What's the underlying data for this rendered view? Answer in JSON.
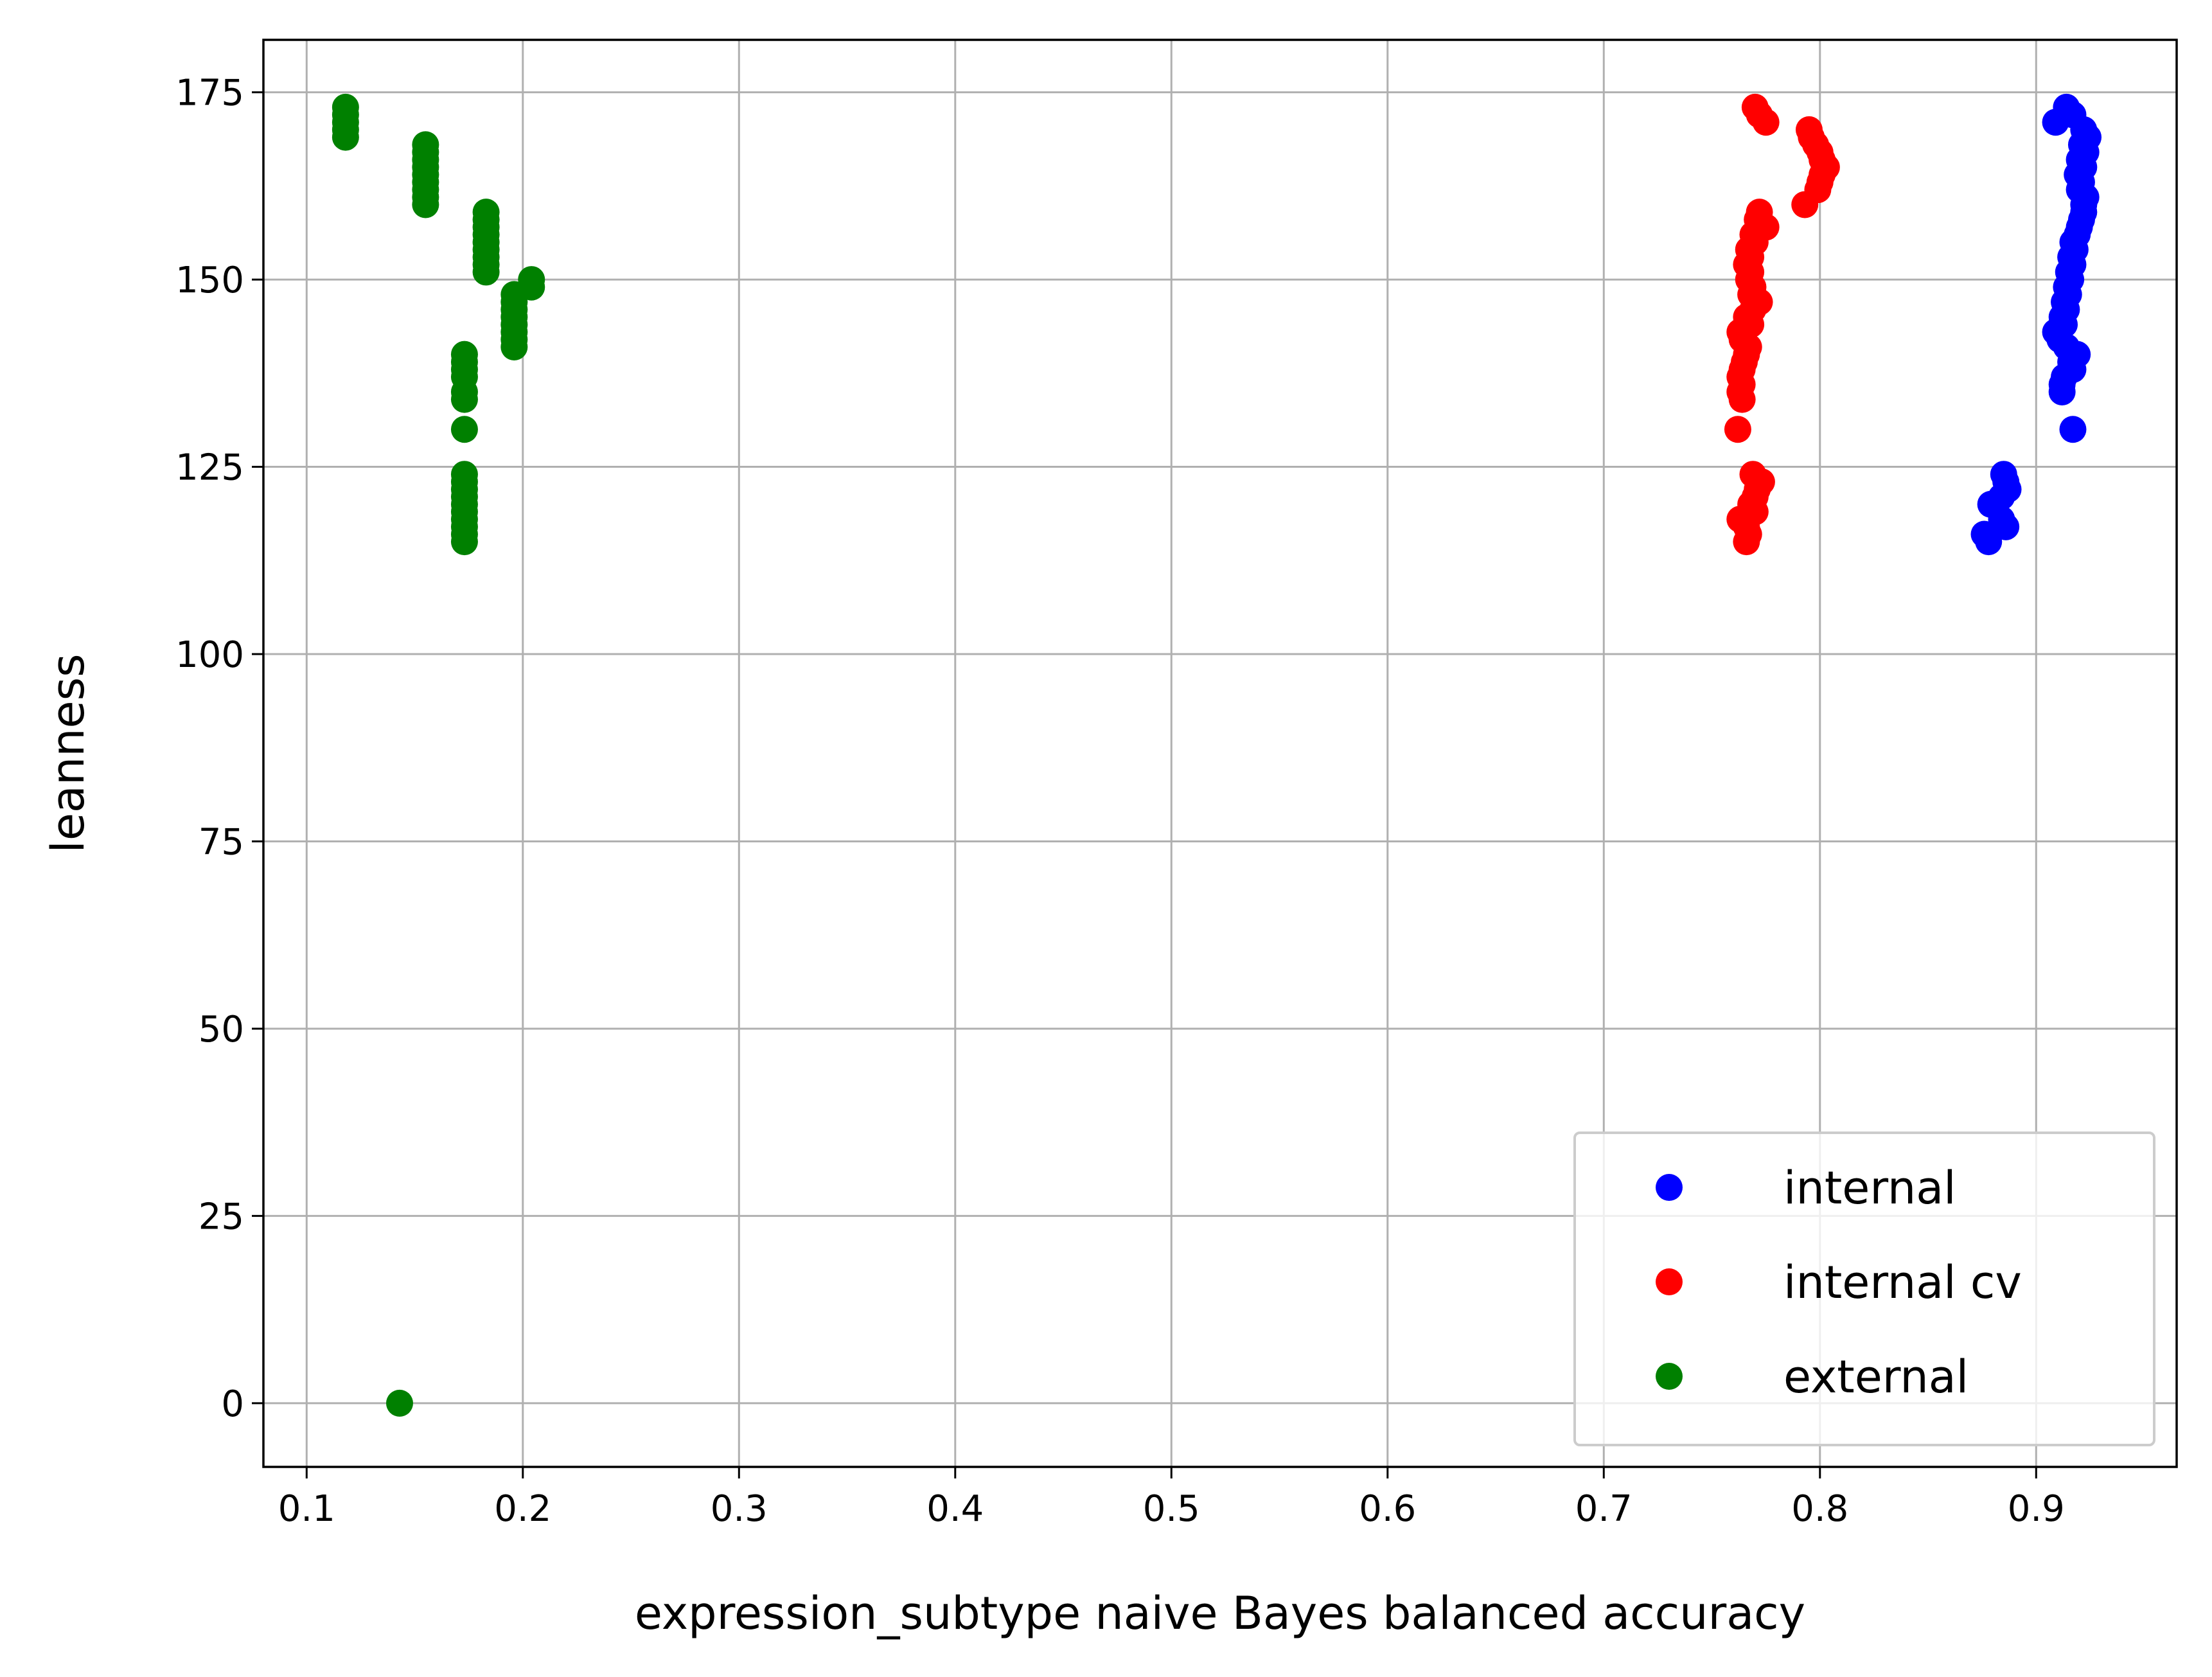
{
  "chart_data": {
    "type": "scatter",
    "title": "",
    "xlabel": "expression_subtype naive Bayes balanced accuracy",
    "ylabel": "leanness",
    "xlim": [
      0.08,
      0.965
    ],
    "ylim": [
      -8.5,
      182
    ],
    "xticks": [
      0.1,
      0.2,
      0.3,
      0.4,
      0.5,
      0.6,
      0.7,
      0.8,
      0.9
    ],
    "xtick_labels": [
      "0.1",
      "0.2",
      "0.3",
      "0.4",
      "0.5",
      "0.6",
      "0.7",
      "0.8",
      "0.9"
    ],
    "yticks": [
      0,
      25,
      50,
      75,
      100,
      125,
      150,
      175
    ],
    "ytick_labels": [
      "0",
      "25",
      "50",
      "75",
      "100",
      "125",
      "150",
      "175"
    ],
    "grid": true,
    "legend_position": "lower-right",
    "series": [
      {
        "name": "internal",
        "color": "#0000ff",
        "points": [
          [
            0.914,
            173
          ],
          [
            0.917,
            172
          ],
          [
            0.909,
            171
          ],
          [
            0.922,
            170
          ],
          [
            0.924,
            169
          ],
          [
            0.921,
            168
          ],
          [
            0.923,
            167
          ],
          [
            0.92,
            166
          ],
          [
            0.922,
            165
          ],
          [
            0.919,
            164
          ],
          [
            0.921,
            163
          ],
          [
            0.92,
            162
          ],
          [
            0.923,
            161
          ],
          [
            0.922,
            160
          ],
          [
            0.922,
            159
          ],
          [
            0.921,
            158
          ],
          [
            0.92,
            157
          ],
          [
            0.919,
            156
          ],
          [
            0.917,
            155
          ],
          [
            0.918,
            154
          ],
          [
            0.916,
            153
          ],
          [
            0.917,
            152
          ],
          [
            0.915,
            151
          ],
          [
            0.916,
            150
          ],
          [
            0.914,
            149
          ],
          [
            0.915,
            148
          ],
          [
            0.913,
            147
          ],
          [
            0.914,
            146
          ],
          [
            0.912,
            145
          ],
          [
            0.913,
            144
          ],
          [
            0.909,
            143
          ],
          [
            0.911,
            142
          ],
          [
            0.914,
            141
          ],
          [
            0.919,
            140
          ],
          [
            0.916,
            139
          ],
          [
            0.917,
            138
          ],
          [
            0.913,
            137
          ],
          [
            0.912,
            136
          ],
          [
            0.912,
            135
          ],
          [
            0.917,
            130
          ],
          [
            0.885,
            124
          ],
          [
            0.886,
            123
          ],
          [
            0.887,
            122
          ],
          [
            0.884,
            121
          ],
          [
            0.879,
            120
          ],
          [
            0.884,
            118
          ],
          [
            0.886,
            117
          ],
          [
            0.876,
            116
          ],
          [
            0.878,
            115
          ]
        ]
      },
      {
        "name": "internal cv",
        "color": "#ff0000",
        "points": [
          [
            0.77,
            173
          ],
          [
            0.772,
            172
          ],
          [
            0.775,
            171
          ],
          [
            0.795,
            170
          ],
          [
            0.796,
            169
          ],
          [
            0.798,
            168
          ],
          [
            0.8,
            167
          ],
          [
            0.801,
            166
          ],
          [
            0.803,
            165
          ],
          [
            0.801,
            164
          ],
          [
            0.8,
            163
          ],
          [
            0.799,
            162
          ],
          [
            0.793,
            160
          ],
          [
            0.772,
            159
          ],
          [
            0.771,
            158
          ],
          [
            0.775,
            157
          ],
          [
            0.769,
            156
          ],
          [
            0.77,
            155
          ],
          [
            0.767,
            154
          ],
          [
            0.768,
            153
          ],
          [
            0.766,
            152
          ],
          [
            0.768,
            151
          ],
          [
            0.767,
            150
          ],
          [
            0.769,
            149
          ],
          [
            0.768,
            148
          ],
          [
            0.772,
            147
          ],
          [
            0.769,
            146
          ],
          [
            0.766,
            145
          ],
          [
            0.768,
            144
          ],
          [
            0.763,
            143
          ],
          [
            0.764,
            142
          ],
          [
            0.767,
            141
          ],
          [
            0.766,
            140
          ],
          [
            0.765,
            139
          ],
          [
            0.764,
            138
          ],
          [
            0.763,
            137
          ],
          [
            0.764,
            136
          ],
          [
            0.763,
            135
          ],
          [
            0.764,
            134
          ],
          [
            0.762,
            130
          ],
          [
            0.769,
            124
          ],
          [
            0.773,
            123
          ],
          [
            0.771,
            122
          ],
          [
            0.77,
            121
          ],
          [
            0.768,
            120
          ],
          [
            0.77,
            119
          ],
          [
            0.763,
            118
          ],
          [
            0.766,
            117
          ],
          [
            0.767,
            116
          ],
          [
            0.766,
            115
          ]
        ]
      },
      {
        "name": "external",
        "color": "#008000",
        "points": [
          [
            0.118,
            173
          ],
          [
            0.118,
            172
          ],
          [
            0.118,
            171
          ],
          [
            0.118,
            170
          ],
          [
            0.118,
            169
          ],
          [
            0.155,
            168
          ],
          [
            0.155,
            167
          ],
          [
            0.155,
            166
          ],
          [
            0.155,
            165
          ],
          [
            0.155,
            164
          ],
          [
            0.155,
            163
          ],
          [
            0.155,
            162
          ],
          [
            0.155,
            161
          ],
          [
            0.155,
            160
          ],
          [
            0.183,
            159
          ],
          [
            0.183,
            158
          ],
          [
            0.183,
            157
          ],
          [
            0.183,
            156
          ],
          [
            0.183,
            155
          ],
          [
            0.183,
            154
          ],
          [
            0.183,
            153
          ],
          [
            0.183,
            152
          ],
          [
            0.183,
            151
          ],
          [
            0.204,
            150
          ],
          [
            0.204,
            149
          ],
          [
            0.196,
            148
          ],
          [
            0.196,
            147
          ],
          [
            0.196,
            146
          ],
          [
            0.196,
            145
          ],
          [
            0.196,
            144
          ],
          [
            0.196,
            143
          ],
          [
            0.196,
            142
          ],
          [
            0.196,
            141
          ],
          [
            0.173,
            140
          ],
          [
            0.173,
            139
          ],
          [
            0.173,
            138
          ],
          [
            0.173,
            137
          ],
          [
            0.173,
            135
          ],
          [
            0.173,
            134
          ],
          [
            0.173,
            130
          ],
          [
            0.173,
            124
          ],
          [
            0.173,
            123
          ],
          [
            0.173,
            122
          ],
          [
            0.173,
            121
          ],
          [
            0.173,
            120
          ],
          [
            0.173,
            119
          ],
          [
            0.173,
            118
          ],
          [
            0.173,
            117
          ],
          [
            0.173,
            116
          ],
          [
            0.173,
            115
          ],
          [
            0.143,
            0
          ]
        ]
      }
    ]
  }
}
